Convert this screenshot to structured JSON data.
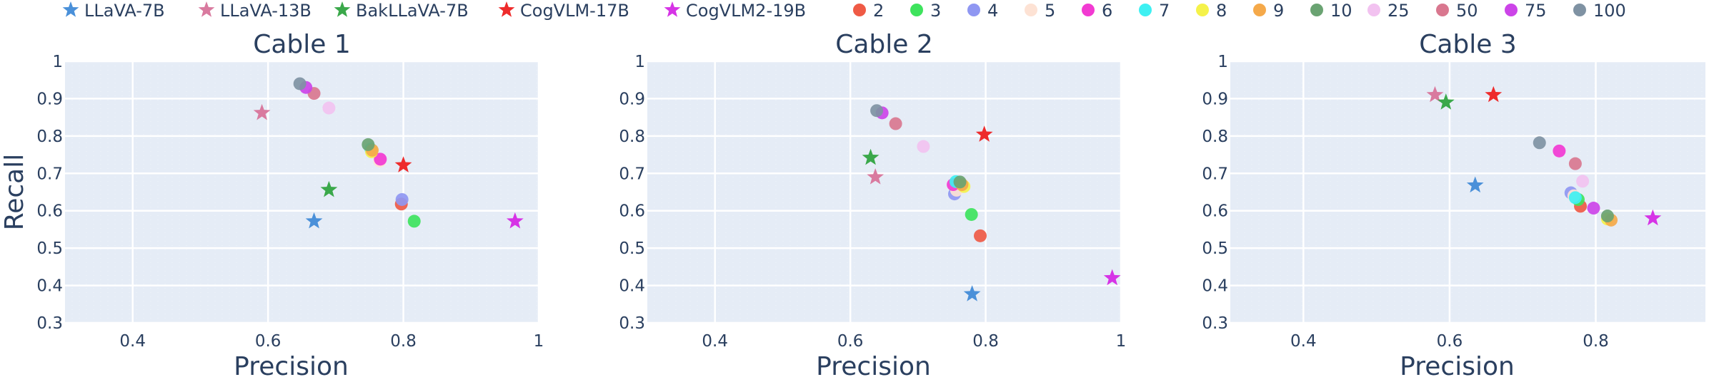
{
  "legend": [
    {
      "label": "LLaVA-7B",
      "marker": "star",
      "color": "#4a90d9"
    },
    {
      "label": "LLaVA-13B",
      "marker": "star",
      "color": "#d97a9f"
    },
    {
      "label": "BakLLaVA-7B",
      "marker": "star",
      "color": "#3aa84a"
    },
    {
      "label": "CogVLM-17B",
      "marker": "star",
      "color": "#ee2b2b"
    },
    {
      "label": "CogVLM2-19B",
      "marker": "star",
      "color": "#d633e6"
    },
    {
      "label": "2",
      "marker": "circle",
      "color": "#ef5a45"
    },
    {
      "label": "3",
      "marker": "circle",
      "color": "#3ee35d"
    },
    {
      "label": "4",
      "marker": "circle",
      "color": "#8f97f2"
    },
    {
      "label": "5",
      "marker": "circle",
      "color": "#fde2d4"
    },
    {
      "label": "6",
      "marker": "circle",
      "color": "#f23ad2"
    },
    {
      "label": "7",
      "marker": "circle",
      "color": "#3ef0f2"
    },
    {
      "label": "8",
      "marker": "circle",
      "color": "#f5f24a"
    },
    {
      "label": "9",
      "marker": "circle",
      "color": "#f5a94a"
    },
    {
      "label": "10",
      "marker": "circle",
      "color": "#6aa372"
    },
    {
      "label": "25",
      "marker": "circle",
      "color": "#f2c2f0"
    },
    {
      "label": "50",
      "marker": "circle",
      "color": "#d9778f"
    },
    {
      "label": "75",
      "marker": "circle",
      "color": "#cc44e8"
    },
    {
      "label": "100",
      "marker": "circle",
      "color": "#7f92a3"
    }
  ],
  "chart_data": [
    {
      "type": "scatter",
      "title": "Cable 1",
      "xlabel": "Precision",
      "ylabel": "Recall",
      "xlim": [
        0.3,
        1.0
      ],
      "ylim": [
        0.3,
        1.0
      ],
      "xticks": [
        "0.4",
        "0.6",
        "0.8",
        "1"
      ],
      "yticks": [
        "0.3",
        "0.4",
        "0.5",
        "0.6",
        "0.7",
        "0.8",
        "0.9",
        "1"
      ],
      "xtick_values": [
        0.4,
        0.6,
        0.8,
        1.0
      ],
      "ytick_values": [
        0.3,
        0.4,
        0.5,
        0.6,
        0.7,
        0.8,
        0.9,
        1.0
      ],
      "points": [
        {
          "series": "LLaVA-7B",
          "x": 0.668,
          "y": 0.572
        },
        {
          "series": "LLaVA-13B",
          "x": 0.591,
          "y": 0.862
        },
        {
          "series": "BakLLaVA-7B",
          "x": 0.69,
          "y": 0.656
        },
        {
          "series": "CogVLM-17B",
          "x": 0.8,
          "y": 0.722
        },
        {
          "series": "CogVLM2-19B",
          "x": 0.965,
          "y": 0.572
        },
        {
          "series": "2",
          "x": 0.797,
          "y": 0.618
        },
        {
          "series": "3",
          "x": 0.816,
          "y": 0.572
        },
        {
          "series": "4",
          "x": 0.798,
          "y": 0.63
        },
        {
          "series": "5",
          "x": 0.765,
          "y": 0.733
        },
        {
          "series": "6",
          "x": 0.766,
          "y": 0.738
        },
        {
          "series": "7",
          "x": 0.752,
          "y": 0.765
        },
        {
          "series": "8",
          "x": 0.753,
          "y": 0.758
        },
        {
          "series": "9",
          "x": 0.754,
          "y": 0.762
        },
        {
          "series": "10",
          "x": 0.748,
          "y": 0.777
        },
        {
          "series": "25",
          "x": 0.69,
          "y": 0.875
        },
        {
          "series": "50",
          "x": 0.668,
          "y": 0.914
        },
        {
          "series": "75",
          "x": 0.656,
          "y": 0.93
        },
        {
          "series": "100",
          "x": 0.647,
          "y": 0.94
        }
      ]
    },
    {
      "type": "scatter",
      "title": "Cable 2",
      "xlabel": "Precision",
      "ylabel": "",
      "xlim": [
        0.3,
        1.0
      ],
      "ylim": [
        0.3,
        1.0
      ],
      "xticks": [
        "0.4",
        "0.6",
        "0.8",
        "1"
      ],
      "yticks": [
        "0.3",
        "0.4",
        "0.5",
        "0.6",
        "0.7",
        "0.8",
        "0.9",
        "1"
      ],
      "xtick_values": [
        0.4,
        0.6,
        0.8,
        1.0
      ],
      "ytick_values": [
        0.3,
        0.4,
        0.5,
        0.6,
        0.7,
        0.8,
        0.9,
        1.0
      ],
      "points": [
        {
          "series": "LLaVA-7B",
          "x": 0.78,
          "y": 0.377
        },
        {
          "series": "LLaVA-13B",
          "x": 0.637,
          "y": 0.69
        },
        {
          "series": "BakLLaVA-7B",
          "x": 0.63,
          "y": 0.742
        },
        {
          "series": "CogVLM-17B",
          "x": 0.798,
          "y": 0.804
        },
        {
          "series": "CogVLM2-19B",
          "x": 0.987,
          "y": 0.42
        },
        {
          "series": "2",
          "x": 0.792,
          "y": 0.533
        },
        {
          "series": "3",
          "x": 0.779,
          "y": 0.59
        },
        {
          "series": "4",
          "x": 0.754,
          "y": 0.645
        },
        {
          "series": "5",
          "x": 0.757,
          "y": 0.655
        },
        {
          "series": "6",
          "x": 0.752,
          "y": 0.67
        },
        {
          "series": "7",
          "x": 0.756,
          "y": 0.678
        },
        {
          "series": "8",
          "x": 0.768,
          "y": 0.665
        },
        {
          "series": "9",
          "x": 0.765,
          "y": 0.67
        },
        {
          "series": "10",
          "x": 0.762,
          "y": 0.677
        },
        {
          "series": "25",
          "x": 0.708,
          "y": 0.772
        },
        {
          "series": "50",
          "x": 0.667,
          "y": 0.833
        },
        {
          "series": "75",
          "x": 0.647,
          "y": 0.862
        },
        {
          "series": "100",
          "x": 0.639,
          "y": 0.868
        }
      ]
    },
    {
      "type": "scatter",
      "title": "Cable 3",
      "xlabel": "Precision",
      "ylabel": "",
      "xlim": [
        0.3,
        0.95
      ],
      "ylim": [
        0.3,
        1.0
      ],
      "xticks": [
        "0.4",
        "0.6",
        "0.8"
      ],
      "yticks": [
        "0.3",
        "0.4",
        "0.5",
        "0.6",
        "0.7",
        "0.8",
        "0.9",
        "1"
      ],
      "xtick_values": [
        0.4,
        0.6,
        0.8
      ],
      "ytick_values": [
        0.3,
        0.4,
        0.5,
        0.6,
        0.7,
        0.8,
        0.9,
        1.0
      ],
      "points": [
        {
          "series": "LLaVA-7B",
          "x": 0.635,
          "y": 0.668
        },
        {
          "series": "LLaVA-13B",
          "x": 0.58,
          "y": 0.91
        },
        {
          "series": "BakLLaVA-7B",
          "x": 0.595,
          "y": 0.89
        },
        {
          "series": "CogVLM-17B",
          "x": 0.66,
          "y": 0.91
        },
        {
          "series": "CogVLM2-19B",
          "x": 0.878,
          "y": 0.58
        },
        {
          "series": "2",
          "x": 0.779,
          "y": 0.612
        },
        {
          "series": "3",
          "x": 0.776,
          "y": 0.63
        },
        {
          "series": "4",
          "x": 0.766,
          "y": 0.648
        },
        {
          "series": "5",
          "x": 0.77,
          "y": 0.64
        },
        {
          "series": "6",
          "x": 0.75,
          "y": 0.76
        },
        {
          "series": "7",
          "x": 0.772,
          "y": 0.635
        },
        {
          "series": "8",
          "x": 0.816,
          "y": 0.578
        },
        {
          "series": "9",
          "x": 0.821,
          "y": 0.575
        },
        {
          "series": "10",
          "x": 0.816,
          "y": 0.586
        },
        {
          "series": "25",
          "x": 0.782,
          "y": 0.679
        },
        {
          "series": "50",
          "x": 0.772,
          "y": 0.726
        },
        {
          "series": "75",
          "x": 0.797,
          "y": 0.607
        },
        {
          "series": "100",
          "x": 0.723,
          "y": 0.782
        }
      ]
    }
  ]
}
